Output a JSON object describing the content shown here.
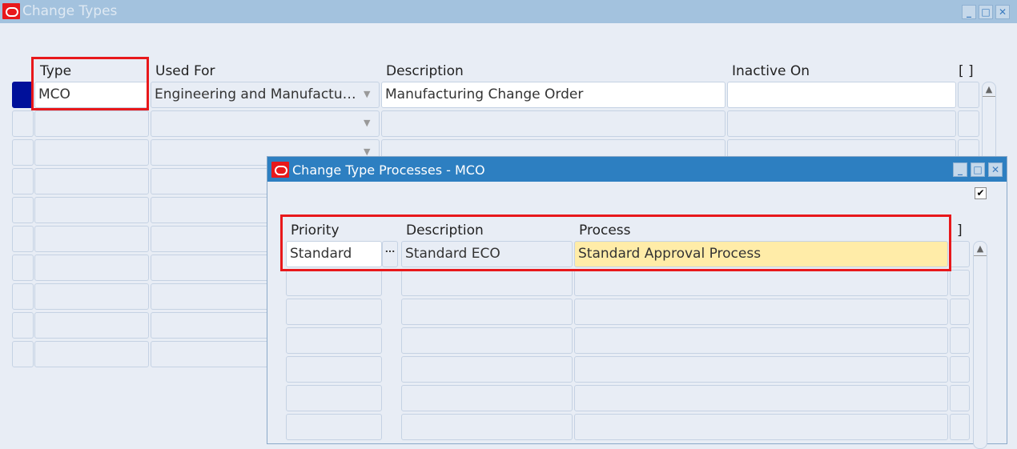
{
  "main_window": {
    "title": "Change Types",
    "columns": {
      "type": "Type",
      "used_for": "Used For",
      "description": "Description",
      "inactive_on": "Inactive On",
      "flex": "[ ]"
    },
    "rows": [
      {
        "type": "MCO",
        "used_for": "Engineering and Manufactu…",
        "description": "Manufacturing Change Order",
        "inactive_on": ""
      }
    ]
  },
  "dialog": {
    "title": "Change Type Processes - MCO",
    "checkbox_checked": true,
    "columns": {
      "priority": "Priority",
      "description": "Description",
      "process": "Process",
      "flex": "]"
    },
    "rows": [
      {
        "priority": "Standard",
        "lov_button": "...",
        "description": "Standard ECO",
        "process": "Standard Approval Process"
      }
    ]
  },
  "colors": {
    "highlight": "#e8181b",
    "current_field": "#ffeca8",
    "dialog_title": "#2d7fc1"
  }
}
